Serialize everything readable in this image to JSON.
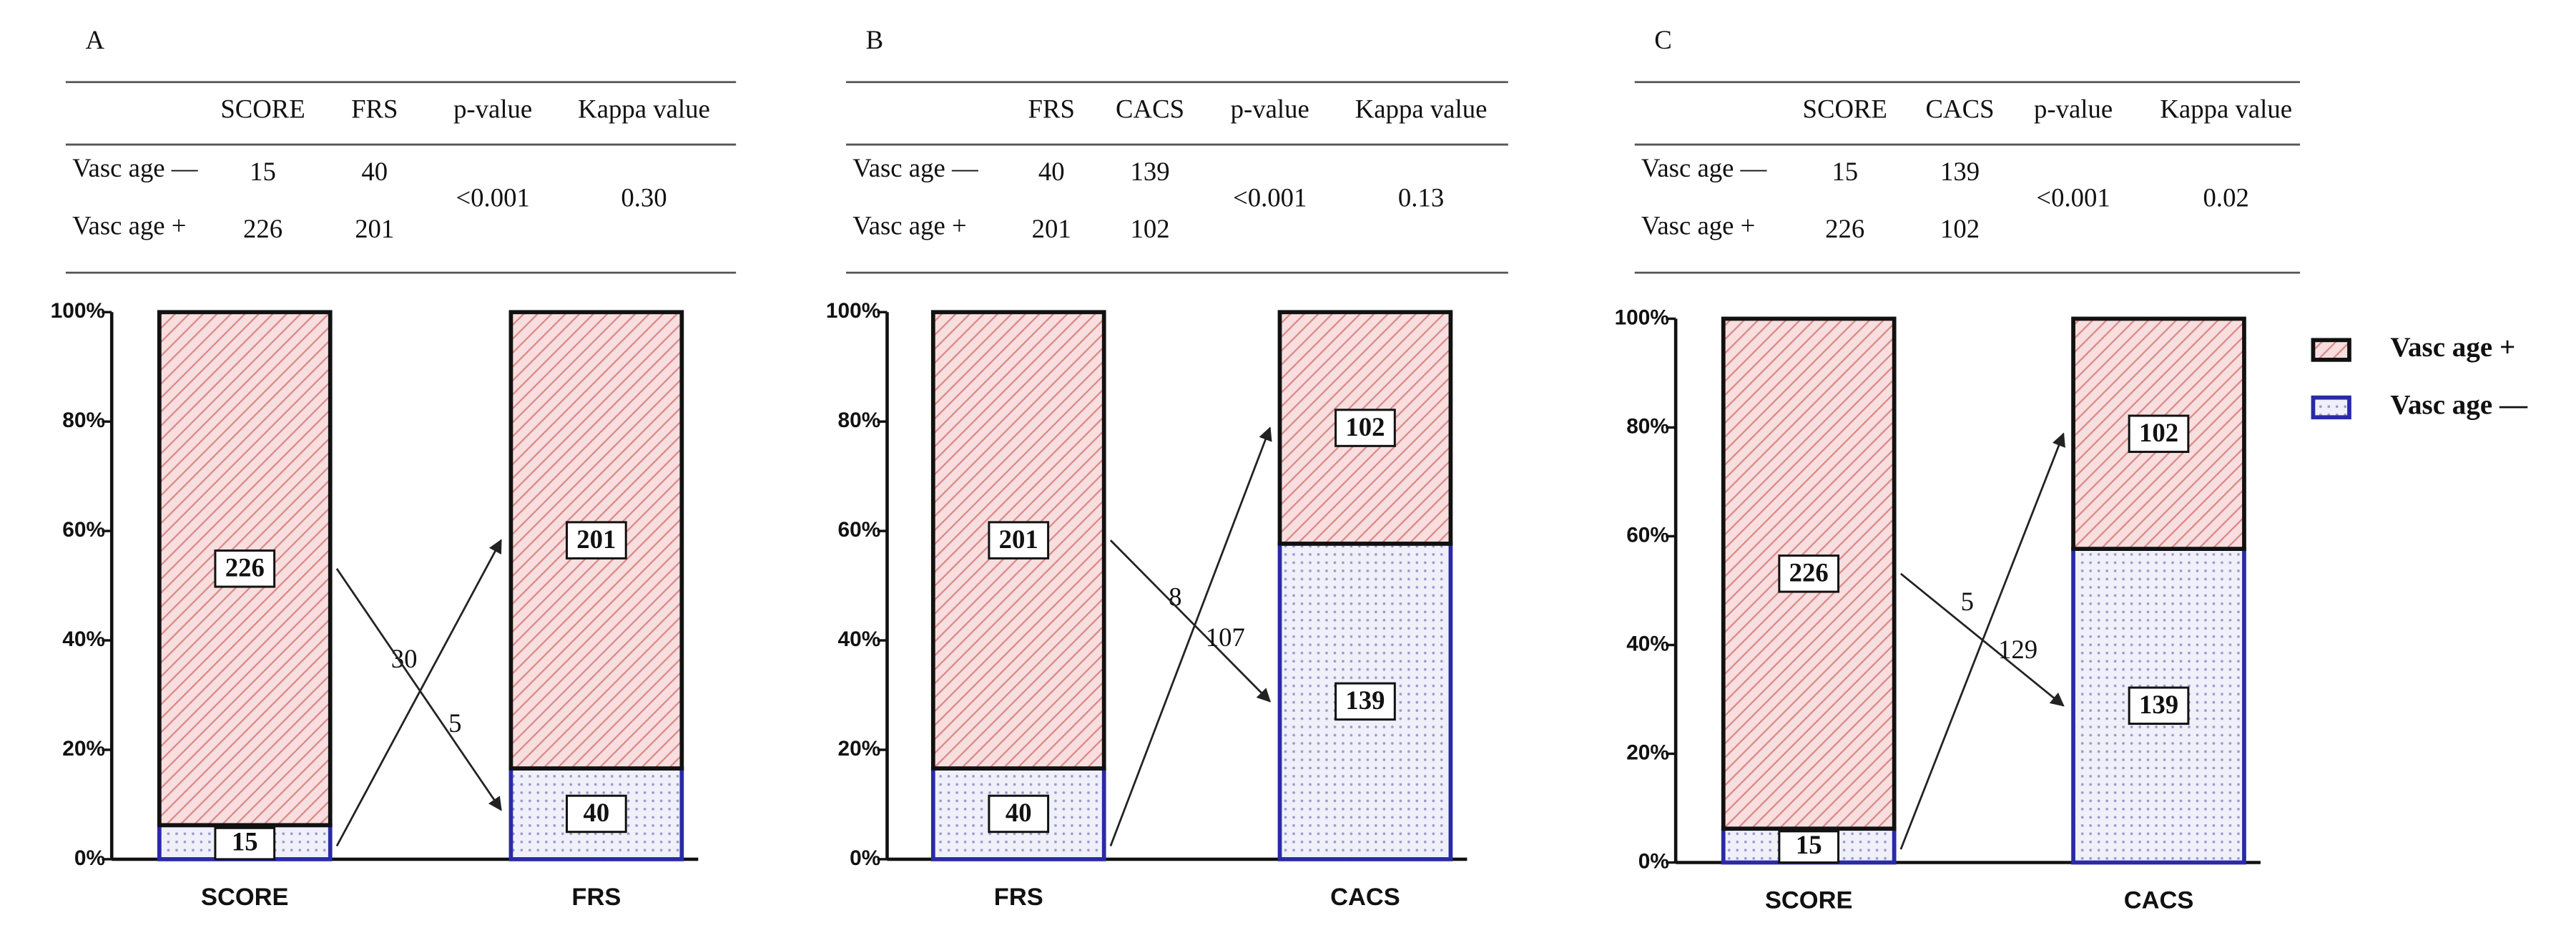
{
  "chart_data": [
    {
      "type": "bar",
      "stacked": "percent",
      "title": "A",
      "table": {
        "columns": [
          "SCORE",
          "FRS",
          "p-value",
          "Kappa value"
        ],
        "rows": [
          {
            "label": "Vasc age —",
            "values": [
              15,
              40
            ]
          },
          {
            "label": "Vasc age +",
            "values": [
              226,
              201
            ]
          }
        ],
        "p_value": "<0.001",
        "kappa": "0.30"
      },
      "categories": [
        "SCORE",
        "FRS"
      ],
      "series": [
        {
          "name": "Vasc age —",
          "color": "#2a2aa8",
          "values": [
            15,
            40
          ]
        },
        {
          "name": "Vasc age +",
          "color": "#d98a8a",
          "values": [
            226,
            201
          ]
        }
      ],
      "flows": [
        {
          "value": 30,
          "from": "Vasc age —",
          "to": "Vasc age +"
        },
        {
          "value": 5,
          "from": "Vasc age +",
          "to": "Vasc age —"
        }
      ],
      "ylim": [
        0,
        100
      ],
      "yticks": [
        {
          "value": 0,
          "label": "0%"
        },
        {
          "value": 20,
          "label": "20%"
        },
        {
          "value": 40,
          "label": "40%"
        },
        {
          "value": 60,
          "label": "60%"
        },
        {
          "value": 80,
          "label": "80%"
        },
        {
          "value": 100,
          "label": "100%"
        }
      ]
    },
    {
      "type": "bar",
      "stacked": "percent",
      "title": "B",
      "table": {
        "columns": [
          "FRS",
          "CACS",
          "p-value",
          "Kappa value"
        ],
        "rows": [
          {
            "label": "Vasc age —",
            "values": [
              40,
              139
            ]
          },
          {
            "label": "Vasc age +",
            "values": [
              201,
              102
            ]
          }
        ],
        "p_value": "<0.001",
        "kappa": "0.13"
      },
      "categories": [
        "FRS",
        "CACS"
      ],
      "series": [
        {
          "name": "Vasc age —",
          "color": "#2a2aa8",
          "values": [
            40,
            139
          ]
        },
        {
          "name": "Vasc age +",
          "color": "#d98a8a",
          "values": [
            201,
            102
          ]
        }
      ],
      "flows": [
        {
          "value": 8,
          "from": "Vasc age —",
          "to": "Vasc age +"
        },
        {
          "value": 107,
          "from": "Vasc age +",
          "to": "Vasc age —"
        }
      ],
      "ylim": [
        0,
        100
      ],
      "yticks": [
        {
          "value": 0,
          "label": "0%"
        },
        {
          "value": 20,
          "label": "20%"
        },
        {
          "value": 40,
          "label": "40%"
        },
        {
          "value": 60,
          "label": "60%"
        },
        {
          "value": 80,
          "label": "80%"
        },
        {
          "value": 100,
          "label": "100%"
        }
      ]
    },
    {
      "type": "bar",
      "stacked": "percent",
      "title": "C",
      "table": {
        "columns": [
          "SCORE",
          "CACS",
          "p-value",
          "Kappa value"
        ],
        "rows": [
          {
            "label": "Vasc age —",
            "values": [
              15,
              139
            ]
          },
          {
            "label": "Vasc age +",
            "values": [
              226,
              102
            ]
          }
        ],
        "p_value": "<0.001",
        "kappa": "0.02"
      },
      "categories": [
        "SCORE",
        "CACS"
      ],
      "series": [
        {
          "name": "Vasc age —",
          "color": "#2a2aa8",
          "values": [
            15,
            139
          ]
        },
        {
          "name": "Vasc age +",
          "color": "#d98a8a",
          "values": [
            226,
            102
          ]
        }
      ],
      "flows": [
        {
          "value": 5,
          "from": "Vasc age —",
          "to": "Vasc age +"
        },
        {
          "value": 129,
          "from": "Vasc age +",
          "to": "Vasc age —"
        }
      ],
      "ylim": [
        0,
        100
      ],
      "yticks": [
        {
          "value": 0,
          "label": "0%"
        },
        {
          "value": 20,
          "label": "20%"
        },
        {
          "value": 40,
          "label": "40%"
        },
        {
          "value": 60,
          "label": "60%"
        },
        {
          "value": 80,
          "label": "80%"
        },
        {
          "value": 100,
          "label": "100%"
        }
      ],
      "legend": "right"
    }
  ]
}
